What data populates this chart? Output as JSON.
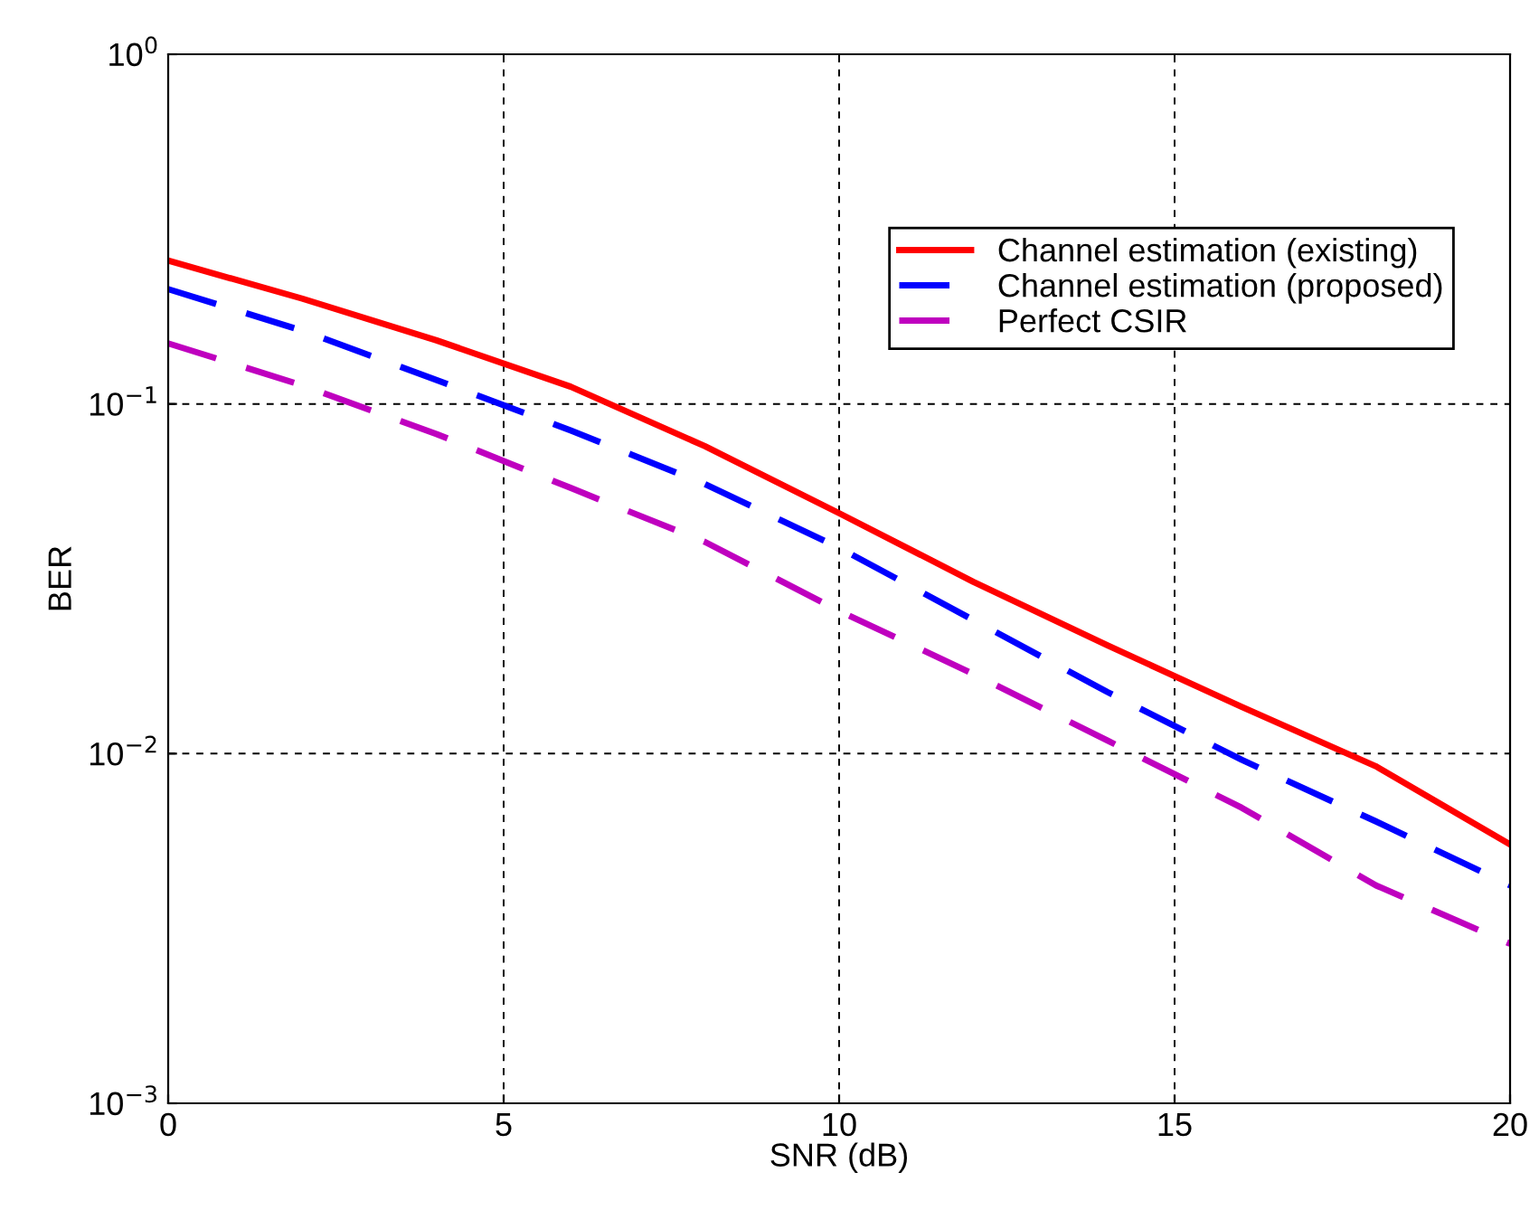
{
  "chart_data": {
    "type": "line",
    "xlabel": "SNR (dB)",
    "ylabel": "BER",
    "log": "y",
    "grid": true,
    "legend": "top right",
    "x": [
      0,
      2,
      4,
      6,
      8,
      10,
      12,
      14,
      16,
      18,
      20
    ],
    "xlim": [
      0,
      20
    ],
    "xticks": [
      0,
      5,
      10,
      15,
      20
    ],
    "ylim": [
      0.001,
      1
    ],
    "yticks": [
      {
        "value": 0.001,
        "label": "10$^{−3}$"
      },
      {
        "value": 0.01,
        "label": "10$^{−2}$"
      },
      {
        "value": 0.1,
        "label": "10$^{−1}$"
      },
      {
        "value": 1,
        "label": "10$^{0}$"
      }
    ],
    "series": [
      {
        "name": "Channel estimation (existing)",
        "color": "#ff0000",
        "line_style": "solid",
        "values": [
          0.257,
          0.2,
          0.152,
          0.112,
          0.0757,
          0.0487,
          0.031,
          0.0204,
          0.0136,
          0.0092,
          0.0055
        ]
      },
      {
        "name": "Channel estimation (proposed)",
        "color": "#0000ff",
        "line_style": "dashed",
        "values": [
          0.213,
          0.162,
          0.117,
          0.084,
          0.059,
          0.0388,
          0.0241,
          0.015,
          0.0096,
          0.0064,
          0.0042
        ]
      },
      {
        "name": "Perfect CSIR",
        "color": "#bf00bf",
        "line_style": "dashed",
        "values": [
          0.149,
          0.113,
          0.082,
          0.0575,
          0.0403,
          0.0256,
          0.0169,
          0.0109,
          0.007,
          0.0042,
          0.00286
        ]
      }
    ]
  }
}
